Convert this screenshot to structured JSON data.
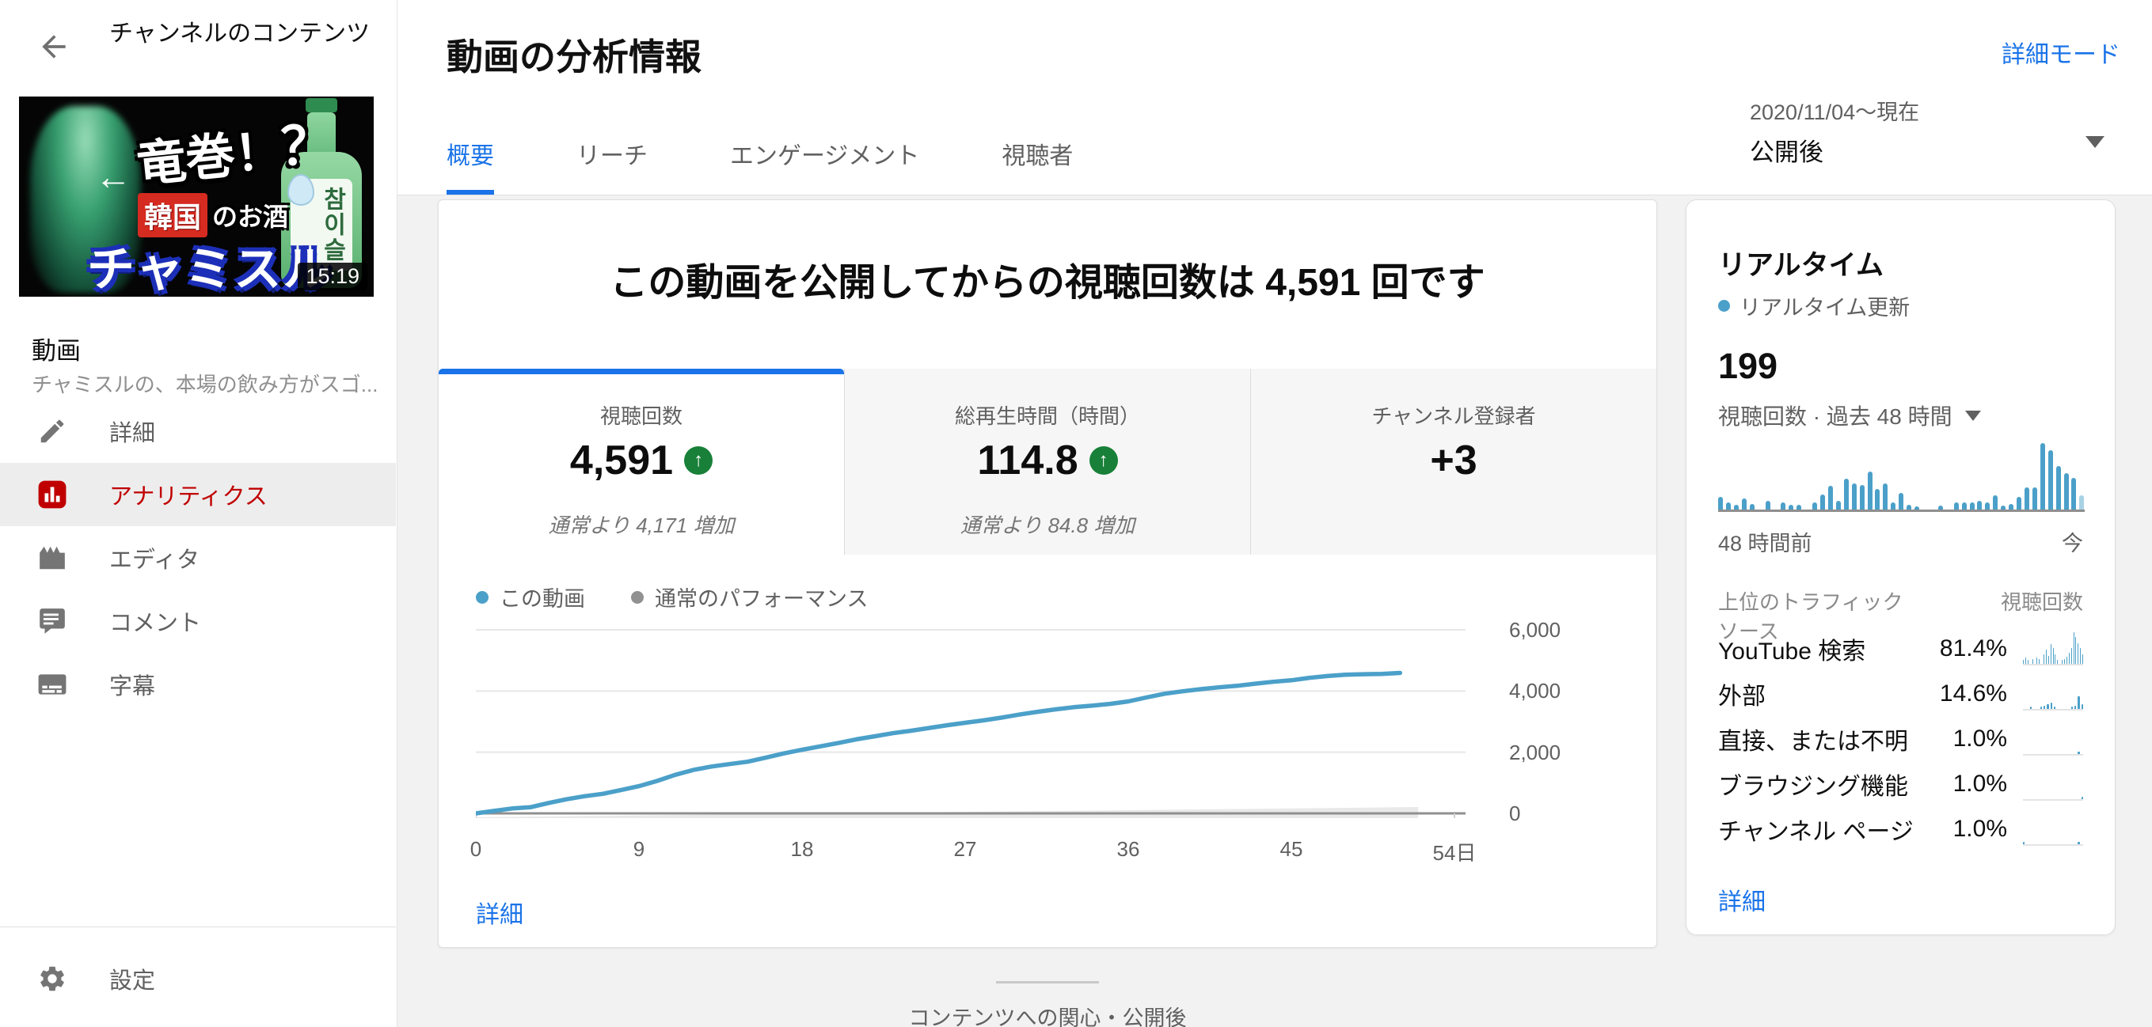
{
  "colors": {
    "accent_blue": "#1a73e8",
    "chart_blue": "#4ba0c9",
    "chart_blue_light": "#a8d2e6",
    "green": "#188038",
    "red": "#c00000",
    "normal_band": "#e9e9e9"
  },
  "sidebar": {
    "back_title": "チャンネルのコンテンツ",
    "thumbnail": {
      "arrow": "←",
      "headline": "竜巻！",
      "question": "？",
      "sub_red": "韓国",
      "sub_white": "のお酒",
      "main": "チャミスル",
      "bottle_label": "참이슬",
      "duration": "15:19"
    },
    "video_label": "動画",
    "video_desc": "チャミスルの、本場の飲み方がスゴ...",
    "menu": [
      {
        "key": "details",
        "icon": "pencil-icon",
        "label": "詳細",
        "active": false
      },
      {
        "key": "analytics",
        "icon": "analytics-icon",
        "label": "アナリティクス",
        "active": true
      },
      {
        "key": "editor",
        "icon": "editor-icon",
        "label": "エディタ",
        "active": false
      },
      {
        "key": "comments",
        "icon": "comments-icon",
        "label": "コメント",
        "active": false
      },
      {
        "key": "subtitles",
        "icon": "subtitles-icon",
        "label": "字幕",
        "active": false
      }
    ],
    "settings_label": "設定"
  },
  "header": {
    "title": "動画の分析情報",
    "tabs": [
      {
        "label": "概要",
        "active": true
      },
      {
        "label": "リーチ",
        "active": false
      },
      {
        "label": "エンゲージメント",
        "active": false
      },
      {
        "label": "視聴者",
        "active": false
      }
    ],
    "advanced_mode": "詳細モード",
    "date_range": "2020/11/04〜現在",
    "date_mode": "公開後"
  },
  "overview": {
    "headline": "この動画を公開してからの視聴回数は 4,591 回です",
    "metrics": [
      {
        "label": "視聴回数",
        "value": "4,591",
        "delta": "通常より 4,171 増加",
        "trend_up": true,
        "active": true
      },
      {
        "label": "総再生時間（時間）",
        "value": "114.8",
        "delta": "通常より 84.8 増加",
        "trend_up": true,
        "active": false
      },
      {
        "label": "チャンネル登録者",
        "value": "+3",
        "delta": "",
        "trend_up": false,
        "active": false
      }
    ],
    "details_link": "詳細",
    "next_section": "コンテンツへの関心・公開後"
  },
  "realtime": {
    "title": "リアルタイム",
    "live_label": "リアルタイム更新",
    "count": "199",
    "count_label": "視聴回数 · 過去 48 時間",
    "axis_left": "48 時間前",
    "axis_right": "今",
    "traffic_header": {
      "source": "上位のトラフィック ソース",
      "views": "視聴回数"
    },
    "traffic_rows": [
      {
        "label": "YouTube 検索",
        "pct": "81.4%",
        "spark": [
          5,
          8,
          5,
          0,
          6,
          0,
          8,
          6,
          0,
          12,
          18,
          10,
          25,
          20,
          12,
          5,
          0,
          5,
          6,
          9,
          14,
          20,
          40,
          34,
          26,
          20,
          12
        ]
      },
      {
        "label": "外部",
        "pct": "14.6%",
        "spark": [
          0,
          0,
          3,
          0,
          0,
          3,
          4,
          6,
          8,
          3,
          0,
          0,
          0,
          0,
          3,
          4,
          16,
          6
        ]
      },
      {
        "label": "直接、または不明",
        "pct": "1.0%",
        "spark": [
          0,
          0,
          0,
          0,
          0,
          0,
          0,
          0,
          0,
          0,
          0,
          0,
          0,
          0,
          0,
          0,
          3,
          0
        ]
      },
      {
        "label": "ブラウジング機能",
        "pct": "1.0%",
        "spark": [
          0,
          0,
          0,
          0,
          0,
          0,
          0,
          0,
          0,
          0,
          0,
          0,
          0,
          0,
          0,
          0,
          0,
          3
        ]
      },
      {
        "label": "チャンネル ページ",
        "pct": "1.0%",
        "spark": [
          3,
          0,
          0,
          0,
          0,
          0,
          0,
          0,
          0,
          0,
          0,
          0,
          0,
          0,
          0,
          0,
          3,
          0
        ]
      }
    ],
    "details_link": "詳細"
  },
  "chart_data": [
    {
      "type": "line",
      "title": "この動画を公開してからの視聴回数は 4,591 回です",
      "legend": [
        "この動画",
        "通常のパフォーマンス"
      ],
      "legend_colors": [
        "#4ba0c9",
        "#919191"
      ],
      "xlabel": "日",
      "ylabel": "視聴回数",
      "xticks": [
        "0",
        "9",
        "18",
        "27",
        "36",
        "45",
        "54日"
      ],
      "xtick_days": [
        0,
        9,
        18,
        27,
        36,
        45,
        54
      ],
      "yticks": [
        "0",
        "2,000",
        "4,000",
        "6,000"
      ],
      "xlim": [
        0,
        54
      ],
      "ylim": [
        0,
        6000
      ],
      "grid": true,
      "series": [
        {
          "name": "この動画",
          "points": [
            [
              0,
              0
            ],
            [
              1,
              80
            ],
            [
              2,
              160
            ],
            [
              3,
              200
            ],
            [
              4,
              340
            ],
            [
              5,
              460
            ],
            [
              6,
              560
            ],
            [
              7,
              640
            ],
            [
              8,
              760
            ],
            [
              9,
              890
            ],
            [
              10,
              1060
            ],
            [
              11,
              1260
            ],
            [
              12,
              1420
            ],
            [
              13,
              1530
            ],
            [
              14,
              1610
            ],
            [
              15,
              1690
            ],
            [
              16,
              1820
            ],
            [
              17,
              1960
            ],
            [
              18,
              2080
            ],
            [
              19,
              2190
            ],
            [
              20,
              2300
            ],
            [
              21,
              2420
            ],
            [
              22,
              2520
            ],
            [
              23,
              2620
            ],
            [
              24,
              2700
            ],
            [
              25,
              2790
            ],
            [
              26,
              2880
            ],
            [
              27,
              2960
            ],
            [
              28,
              3040
            ],
            [
              29,
              3130
            ],
            [
              30,
              3230
            ],
            [
              31,
              3320
            ],
            [
              32,
              3400
            ],
            [
              33,
              3470
            ],
            [
              34,
              3520
            ],
            [
              35,
              3580
            ],
            [
              36,
              3660
            ],
            [
              37,
              3790
            ],
            [
              38,
              3910
            ],
            [
              39,
              3990
            ],
            [
              40,
              4060
            ],
            [
              41,
              4120
            ],
            [
              42,
              4170
            ],
            [
              43,
              4240
            ],
            [
              44,
              4300
            ],
            [
              45,
              4350
            ],
            [
              46,
              4430
            ],
            [
              47,
              4490
            ],
            [
              48,
              4530
            ],
            [
              49,
              4550
            ],
            [
              50,
              4560
            ],
            [
              51,
              4591
            ]
          ]
        },
        {
          "name": "通常のパフォーマンス",
          "points": [
            [
              0,
              30
            ],
            [
              52,
              310
            ]
          ],
          "band": true
        }
      ]
    },
    {
      "type": "bar",
      "title": "リアルタイム 視聴回数 · 過去 48 時間",
      "x_left": "48 時間前",
      "x_right": "今",
      "values": [
        18,
        10,
        7,
        16,
        8,
        0,
        12,
        0,
        10,
        7,
        7,
        0,
        10,
        22,
        34,
        12,
        44,
        38,
        35,
        55,
        30,
        38,
        10,
        24,
        7,
        5,
        0,
        0,
        6,
        0,
        10,
        10,
        10,
        12,
        10,
        20,
        6,
        8,
        18,
        32,
        32,
        95,
        85,
        62,
        52,
        45,
        20
      ],
      "last_bar_light": true
    }
  ]
}
